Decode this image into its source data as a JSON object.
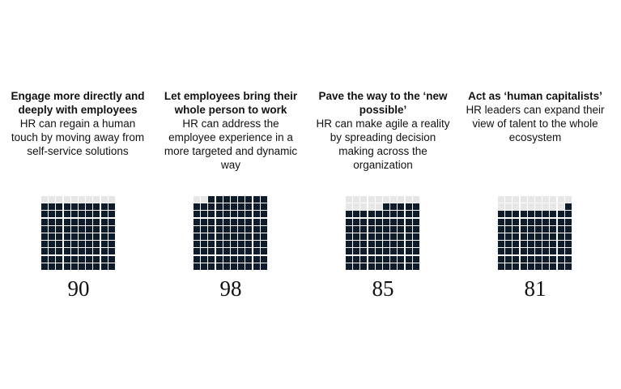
{
  "colors": {
    "filled": "#0d1b2a",
    "empty": "#e6e6e6"
  },
  "chart_data": {
    "type": "waffle",
    "units_per_grid": 100,
    "items": [
      {
        "heading": "Engage more directly and deeply with employees",
        "description": "HR can regain a human touch by moving away from self-service solutions",
        "value": 90,
        "value_label": "90"
      },
      {
        "heading": "Let employees bring their whole person to work",
        "description": "HR can address the employee experience in a more targeted and dynamic way",
        "value": 98,
        "value_label": "98"
      },
      {
        "heading": "Pave the way to the ‘new possible’",
        "description": "HR can make agile a reality by spreading decision making across the organization",
        "value": 85,
        "value_label": "85"
      },
      {
        "heading": "Act as ‘human capitalists’",
        "description": "HR leaders can expand their view of talent to the whole ecosystem",
        "value": 81,
        "value_label": "81"
      }
    ]
  }
}
